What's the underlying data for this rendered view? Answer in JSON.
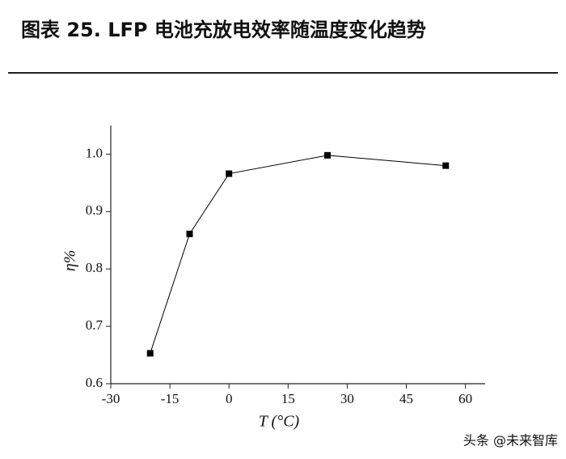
{
  "chart_data": {
    "type": "line",
    "title": "图表 25. LFP 电池充放电效率随温度变化趋势",
    "x_label": "T (°C)",
    "y_label": "η%",
    "x": [
      -20,
      -10,
      0,
      25,
      55
    ],
    "series": [
      {
        "name": "η",
        "color": "#000000",
        "values": [
          0.653,
          0.861,
          0.966,
          0.998,
          0.98
        ]
      }
    ],
    "xlim": [
      -30,
      65
    ],
    "ylim": [
      0.6,
      1.05
    ],
    "xticks": [
      -30,
      -15,
      0,
      15,
      30,
      45,
      60
    ],
    "yticks": [
      0.6,
      0.7,
      0.8,
      0.9,
      {
        "value": 1.0,
        "label": "1.0"
      }
    ],
    "grid": false,
    "watermark": "头条 @未来智库"
  }
}
